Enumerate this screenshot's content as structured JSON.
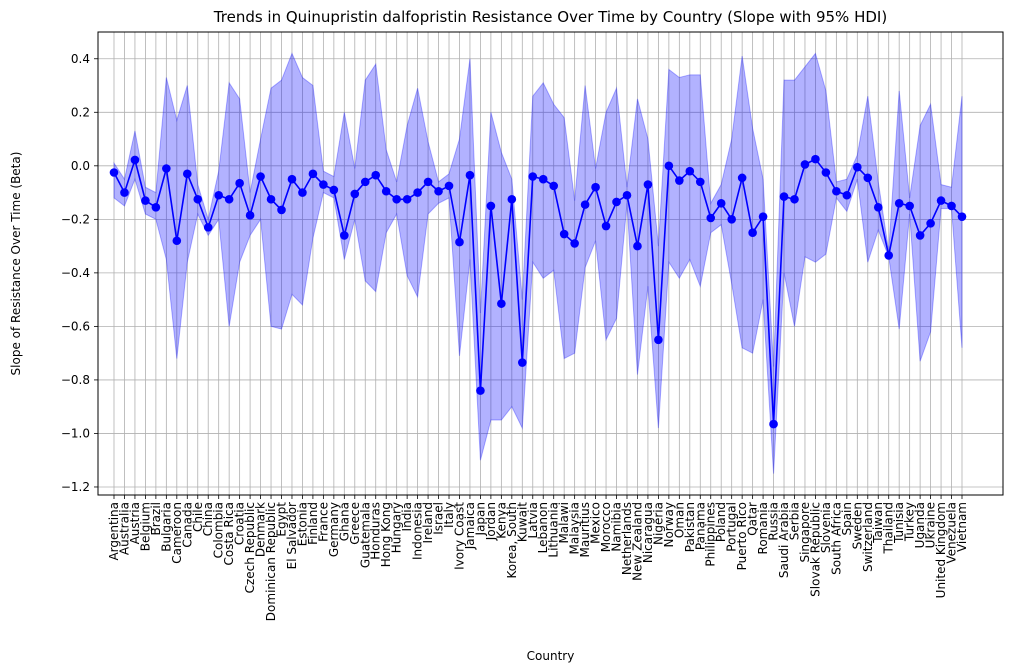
{
  "chart_data": {
    "type": "line",
    "title": "Trends in Quinupristin dalfopristin Resistance Over Time by Country (Slope with 95% HDI)",
    "xlabel": "Country",
    "ylabel": "Slope of Resistance Over Time (Beta)",
    "ylim": [
      -1.23,
      0.5
    ],
    "yticks": [
      0.4,
      0.2,
      0.0,
      -0.2,
      -0.4,
      -0.6,
      -0.8,
      -1.0,
      -1.2
    ],
    "ytick_labels": [
      "0.4",
      "0.2",
      "0.0",
      "−0.2",
      "−0.4",
      "−0.6",
      "−0.8",
      "−1.0",
      "−1.2"
    ],
    "grid": true,
    "series_color": "#0000ff",
    "band_color": "#0000ff",
    "categories": [
      "Argentina",
      "Australia",
      "Austria",
      "Belgium",
      "Brazil",
      "Bulgaria",
      "Cameroon",
      "Canada",
      "Chile",
      "China",
      "Colombia",
      "Costa Rica",
      "Croatia",
      "Czech Republic",
      "Denmark",
      "Dominican Republic",
      "Egypt",
      "El Salvador",
      "Estonia",
      "Finland",
      "France",
      "Germany",
      "Ghana",
      "Greece",
      "Guatemala",
      "Honduras",
      "Hong Kong",
      "Hungary",
      "India",
      "Indonesia",
      "Ireland",
      "Israel",
      "Italy",
      "Ivory Coast",
      "Jamaica",
      "Japan",
      "Jordan",
      "Kenya",
      "Korea, South",
      "Kuwait",
      "Latvia",
      "Lebanon",
      "Lithuania",
      "Malawi",
      "Malaysia",
      "Mauritius",
      "Mexico",
      "Morocco",
      "Namibia",
      "Netherlands",
      "New Zealand",
      "Nicaragua",
      "Nigeria",
      "Norway",
      "Oman",
      "Pakistan",
      "Panama",
      "Philippines",
      "Poland",
      "Portugal",
      "Puerto Rico",
      "Qatar",
      "Romania",
      "Russia",
      "Saudi Arabia",
      "Serbia",
      "Singapore",
      "Slovak Republic",
      "Slovenia",
      "South Africa",
      "Spain",
      "Sweden",
      "Switzerland",
      "Taiwan",
      "Thailand",
      "Tunisia",
      "Turkey",
      "Uganda",
      "Ukraine",
      "United Kingdom",
      "Venezuela",
      "Vietnam"
    ],
    "series": [
      {
        "name": "Slope",
        "values": [
          -0.025,
          -0.1,
          0.022,
          -0.13,
          -0.155,
          -0.01,
          -0.28,
          -0.03,
          -0.125,
          -0.23,
          -0.11,
          -0.125,
          -0.065,
          -0.185,
          -0.04,
          -0.125,
          -0.165,
          -0.05,
          -0.1,
          -0.03,
          -0.07,
          -0.09,
          -0.26,
          -0.105,
          -0.06,
          -0.035,
          -0.095,
          -0.125,
          -0.125,
          -0.1,
          -0.06,
          -0.095,
          -0.075,
          -0.285,
          -0.035,
          -0.84,
          -0.15,
          -0.515,
          -0.125,
          -0.735,
          -0.04,
          -0.05,
          -0.075,
          -0.255,
          -0.29,
          -0.145,
          -0.08,
          -0.225,
          -0.135,
          -0.11,
          -0.3,
          -0.07,
          -0.65,
          0.0,
          -0.055,
          -0.02,
          -0.06,
          -0.195,
          -0.14,
          -0.2,
          -0.045,
          -0.25,
          -0.19,
          -0.965,
          -0.115,
          -0.125,
          0.005,
          0.025,
          -0.025,
          -0.095,
          -0.11,
          -0.005,
          -0.045,
          -0.155,
          -0.335,
          -0.14,
          -0.15,
          -0.26,
          -0.215,
          -0.13,
          -0.15,
          -0.19
        ],
        "hdi_lower": [
          -0.12,
          -0.15,
          -0.05,
          -0.18,
          -0.2,
          -0.35,
          -0.72,
          -0.36,
          -0.18,
          -0.26,
          -0.2,
          -0.6,
          -0.36,
          -0.26,
          -0.2,
          -0.6,
          -0.61,
          -0.48,
          -0.52,
          -0.27,
          -0.1,
          -0.12,
          -0.35,
          -0.2,
          -0.43,
          -0.47,
          -0.25,
          -0.18,
          -0.41,
          -0.49,
          -0.18,
          -0.14,
          -0.12,
          -0.71,
          -0.35,
          -1.1,
          -0.95,
          -0.95,
          -0.9,
          -0.98,
          -0.36,
          -0.42,
          -0.39,
          -0.72,
          -0.7,
          -0.38,
          -0.28,
          -0.65,
          -0.57,
          -0.14,
          -0.78,
          -0.45,
          -0.98,
          -0.36,
          -0.42,
          -0.35,
          -0.45,
          -0.25,
          -0.22,
          -0.44,
          -0.68,
          -0.7,
          -0.5,
          -1.15,
          -0.4,
          -0.6,
          -0.34,
          -0.36,
          -0.33,
          -0.12,
          -0.17,
          -0.05,
          -0.36,
          -0.24,
          -0.34,
          -0.61,
          -0.18,
          -0.73,
          -0.62,
          -0.16,
          -0.16,
          -0.68
        ],
        "hdi_upper": [
          0.01,
          -0.05,
          0.13,
          -0.08,
          -0.1,
          0.33,
          0.17,
          0.3,
          -0.07,
          -0.2,
          -0.02,
          0.31,
          0.25,
          -0.1,
          0.1,
          0.29,
          0.32,
          0.42,
          0.33,
          0.3,
          -0.02,
          -0.04,
          0.2,
          -0.01,
          0.32,
          0.38,
          0.06,
          -0.06,
          0.15,
          0.29,
          0.09,
          -0.06,
          -0.03,
          0.1,
          0.4,
          -0.55,
          0.2,
          0.05,
          -0.05,
          -0.5,
          0.26,
          0.31,
          0.23,
          0.18,
          -0.13,
          0.3,
          -0.01,
          0.2,
          0.29,
          -0.08,
          0.25,
          0.1,
          -0.3,
          0.36,
          0.33,
          0.34,
          0.34,
          -0.14,
          -0.07,
          0.1,
          0.41,
          0.14,
          -0.05,
          -0.75,
          0.32,
          0.32,
          0.37,
          0.42,
          0.28,
          -0.06,
          -0.05,
          0.04,
          0.26,
          -0.06,
          -0.32,
          0.28,
          -0.12,
          0.15,
          0.23,
          -0.07,
          -0.08,
          0.26
        ]
      }
    ]
  }
}
